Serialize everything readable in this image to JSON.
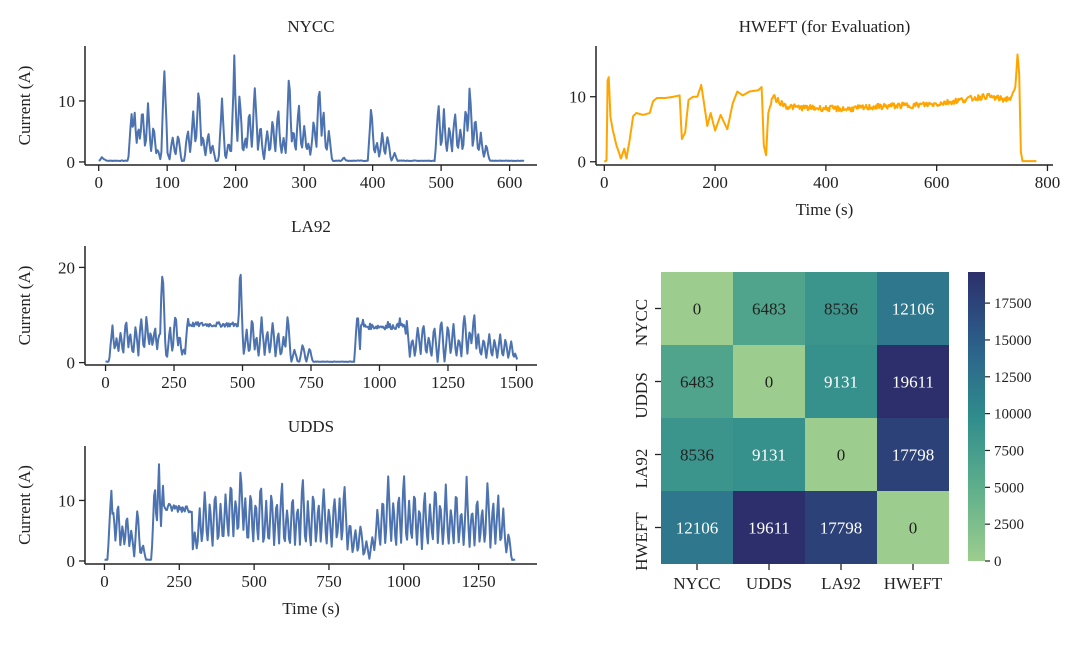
{
  "colors": {
    "series_blue": "#4c72b0",
    "series_orange": "#ffa500",
    "axis": "#222222",
    "heat_low": "#9dcd8e",
    "heat_high": "#2c2f6b"
  },
  "chart_data": [
    {
      "type": "line",
      "title": "NYCC",
      "ylabel": "Current (A)",
      "xlabel": "",
      "xlim": [
        -20,
        640
      ],
      "ylim": [
        -0.5,
        19
      ],
      "xticks": [
        0,
        100,
        200,
        300,
        400,
        500,
        600
      ],
      "yticks": [
        0,
        10
      ],
      "grid": false,
      "color": "#4c72b0",
      "x_max": 620,
      "peaks": [
        [
          5,
          0.9
        ],
        [
          9,
          0.4
        ],
        [
          48,
          8.7
        ],
        [
          52,
          9.0
        ],
        [
          58,
          6.5
        ],
        [
          64,
          10.2
        ],
        [
          72,
          10.3
        ],
        [
          80,
          6.5
        ],
        [
          86,
          2.5
        ],
        [
          96,
          16.8
        ],
        [
          100,
          1.5
        ],
        [
          108,
          4.5
        ],
        [
          116,
          4.8
        ],
        [
          130,
          6.0
        ],
        [
          138,
          9.5
        ],
        [
          146,
          14.5
        ],
        [
          152,
          4.5
        ],
        [
          160,
          5.5
        ],
        [
          166,
          3.0
        ],
        [
          180,
          10.6
        ],
        [
          190,
          3.5
        ],
        [
          198,
          18.0
        ],
        [
          206,
          12.5
        ],
        [
          214,
          4.5
        ],
        [
          220,
          9.5
        ],
        [
          228,
          14.2
        ],
        [
          236,
          6.8
        ],
        [
          246,
          5.5
        ],
        [
          254,
          7.5
        ],
        [
          262,
          9.3
        ],
        [
          270,
          4.2
        ],
        [
          278,
          15.4
        ],
        [
          284,
          6.0
        ],
        [
          292,
          10.5
        ],
        [
          300,
          6.4
        ],
        [
          306,
          3.5
        ],
        [
          314,
          8.0
        ],
        [
          322,
          14.4
        ],
        [
          328,
          9.5
        ],
        [
          336,
          5.5
        ],
        [
          358,
          0.8
        ],
        [
          398,
          10.2
        ],
        [
          406,
          3.5
        ],
        [
          414,
          5.0
        ],
        [
          422,
          4.8
        ],
        [
          432,
          1.5
        ],
        [
          496,
          10.5
        ],
        [
          504,
          9.0
        ],
        [
          512,
          6.2
        ],
        [
          520,
          9.4
        ],
        [
          528,
          6.0
        ],
        [
          536,
          10.7
        ],
        [
          542,
          13.4
        ],
        [
          550,
          8.0
        ],
        [
          558,
          5.0
        ],
        [
          566,
          3.0
        ]
      ]
    },
    {
      "type": "line",
      "title": "LA92",
      "ylabel": "Current (A)",
      "xlabel": "",
      "xlim": [
        -75,
        1575
      ],
      "ylim": [
        -0.5,
        24.5
      ],
      "xticks": [
        0,
        250,
        500,
        750,
        1000,
        1250,
        1500
      ],
      "yticks": [
        0,
        20
      ],
      "grid": false,
      "color": "#4c72b0",
      "x_max": 1500,
      "peaks": [
        [
          25,
          8.3
        ],
        [
          40,
          5.5
        ],
        [
          55,
          7.0
        ],
        [
          75,
          11.0
        ],
        [
          90,
          7.2
        ],
        [
          110,
          8.5
        ],
        [
          130,
          10.7
        ],
        [
          150,
          11.0
        ],
        [
          165,
          7.5
        ],
        [
          180,
          9.0
        ],
        [
          195,
          6.5
        ],
        [
          208,
          23.3
        ],
        [
          215,
          3.5
        ],
        [
          235,
          8.0
        ],
        [
          255,
          11.8
        ],
        [
          270,
          6.5
        ],
        [
          285,
          3.5
        ],
        [
          300,
          10.3
        ],
        [
          320,
          8.0
        ],
        [
          345,
          6.5
        ],
        [
          370,
          7.8
        ],
        [
          400,
          8.2
        ],
        [
          430,
          8.0
        ],
        [
          460,
          8.5
        ],
        [
          485,
          8.2
        ],
        [
          492,
          21.5
        ],
        [
          500,
          3.0
        ],
        [
          515,
          7.5
        ],
        [
          535,
          10.6
        ],
        [
          550,
          6.0
        ],
        [
          570,
          10.2
        ],
        [
          590,
          8.0
        ],
        [
          610,
          10.0
        ],
        [
          630,
          7.0
        ],
        [
          650,
          6.0
        ],
        [
          665,
          10.6
        ],
        [
          690,
          3.0
        ],
        [
          720,
          4.5
        ],
        [
          745,
          3.5
        ],
        [
          920,
          12.8
        ],
        [
          940,
          9.5
        ],
        [
          960,
          8.5
        ],
        [
          985,
          8.0
        ],
        [
          1010,
          7.2
        ],
        [
          1030,
          10.5
        ],
        [
          1055,
          7.5
        ],
        [
          1075,
          10.5
        ],
        [
          1100,
          9.5
        ],
        [
          1120,
          6.0
        ],
        [
          1140,
          8.5
        ],
        [
          1160,
          10.0
        ],
        [
          1180,
          6.0
        ],
        [
          1200,
          8.5
        ],
        [
          1225,
          10.5
        ],
        [
          1250,
          9.0
        ],
        [
          1270,
          8.5
        ],
        [
          1290,
          6.0
        ],
        [
          1310,
          11.5
        ],
        [
          1330,
          8.0
        ],
        [
          1345,
          12.1
        ],
        [
          1360,
          6.5
        ],
        [
          1380,
          5.5
        ],
        [
          1400,
          6.5
        ],
        [
          1420,
          5.5
        ],
        [
          1440,
          6.5
        ],
        [
          1460,
          5.5
        ],
        [
          1480,
          5.0
        ],
        [
          1495,
          2.0
        ]
      ],
      "plateaus": [
        [
          305,
          480,
          7.5,
          8.5
        ],
        [
          935,
          1090,
          7.0,
          8.2
        ]
      ]
    },
    {
      "type": "line",
      "title": "UDDS",
      "ylabel": "Current (A)",
      "xlabel": "Time (s)",
      "xlim": [
        -65,
        1445
      ],
      "ylim": [
        -0.5,
        19
      ],
      "xticks": [
        0,
        250,
        500,
        750,
        1000,
        1250
      ],
      "yticks": [
        0,
        10
      ],
      "grid": false,
      "color": "#4c72b0",
      "x_max": 1370,
      "peaks": [
        [
          22,
          13.3
        ],
        [
          30,
          9.0
        ],
        [
          45,
          10.5
        ],
        [
          60,
          6.5
        ],
        [
          75,
          8.7
        ],
        [
          90,
          6.0
        ],
        [
          110,
          9.5
        ],
        [
          128,
          3.0
        ],
        [
          168,
          15.0
        ],
        [
          182,
          16.5
        ],
        [
          195,
          14.5
        ],
        [
          210,
          9.5
        ],
        [
          235,
          9.0
        ],
        [
          260,
          8.5
        ],
        [
          285,
          9.0
        ],
        [
          302,
          5.5
        ],
        [
          318,
          9.0
        ],
        [
          335,
          13.0
        ],
        [
          352,
          10.5
        ],
        [
          370,
          13.5
        ],
        [
          388,
          11.0
        ],
        [
          405,
          13.0
        ],
        [
          422,
          15.2
        ],
        [
          438,
          12.0
        ],
        [
          455,
          18.2
        ],
        [
          470,
          11.5
        ],
        [
          488,
          13.5
        ],
        [
          505,
          12.0
        ],
        [
          522,
          15.0
        ],
        [
          540,
          10.5
        ],
        [
          558,
          13.0
        ],
        [
          575,
          11.0
        ],
        [
          592,
          14.5
        ],
        [
          610,
          9.5
        ],
        [
          628,
          12.5
        ],
        [
          645,
          11.0
        ],
        [
          662,
          15.3
        ],
        [
          680,
          10.5
        ],
        [
          698,
          13.0
        ],
        [
          715,
          11.0
        ],
        [
          732,
          14.5
        ],
        [
          750,
          10.5
        ],
        [
          768,
          13.0
        ],
        [
          785,
          11.0
        ],
        [
          802,
          14.5
        ],
        [
          820,
          7.5
        ],
        [
          838,
          5.5
        ],
        [
          856,
          7.0
        ],
        [
          875,
          3.5
        ],
        [
          895,
          4.5
        ],
        [
          912,
          10.0
        ],
        [
          930,
          12.5
        ],
        [
          948,
          15.0
        ],
        [
          965,
          10.5
        ],
        [
          983,
          12.0
        ],
        [
          1000,
          15.5
        ],
        [
          1018,
          11.0
        ],
        [
          1035,
          13.5
        ],
        [
          1052,
          10.5
        ],
        [
          1070,
          13.0
        ],
        [
          1088,
          10.5
        ],
        [
          1105,
          14.5
        ],
        [
          1122,
          11.5
        ],
        [
          1140,
          13.0
        ],
        [
          1158,
          10.5
        ],
        [
          1175,
          12.5
        ],
        [
          1192,
          10.0
        ],
        [
          1210,
          14.5
        ],
        [
          1228,
          10.5
        ],
        [
          1245,
          12.0
        ],
        [
          1262,
          10.0
        ],
        [
          1280,
          15.0
        ],
        [
          1298,
          11.0
        ],
        [
          1315,
          12.5
        ],
        [
          1332,
          9.5
        ],
        [
          1350,
          5.0
        ]
      ],
      "plateaus": [
        [
          200,
          290,
          8.0,
          9.5
        ]
      ]
    },
    {
      "type": "line",
      "title": "HWEFT (for Evaluation)",
      "ylabel": "",
      "xlabel": "Time (s)",
      "xlim": [
        -15,
        810
      ],
      "ylim": [
        -0.5,
        17.8
      ],
      "xticks": [
        0,
        200,
        400,
        600,
        800
      ],
      "yticks": [
        0,
        10
      ],
      "grid": false,
      "color": "#ffa500",
      "x_max": 780,
      "profile": [
        [
          0,
          0
        ],
        [
          4,
          0.2
        ],
        [
          6,
          12.5
        ],
        [
          8,
          13.0
        ],
        [
          11,
          7.0
        ],
        [
          15,
          5.0
        ],
        [
          22,
          2.5
        ],
        [
          30,
          0.5
        ],
        [
          36,
          2.0
        ],
        [
          40,
          0.5
        ],
        [
          46,
          3.5
        ],
        [
          52,
          7.0
        ],
        [
          58,
          7.5
        ],
        [
          70,
          7.2
        ],
        [
          82,
          7.5
        ],
        [
          88,
          9.3
        ],
        [
          95,
          9.8
        ],
        [
          110,
          9.8
        ],
        [
          125,
          10.0
        ],
        [
          136,
          10.2
        ],
        [
          140,
          3.5
        ],
        [
          146,
          4.5
        ],
        [
          152,
          9.5
        ],
        [
          160,
          10.0
        ],
        [
          168,
          10.0
        ],
        [
          175,
          11.8
        ],
        [
          180,
          9.0
        ],
        [
          186,
          5.5
        ],
        [
          192,
          7.5
        ],
        [
          200,
          4.8
        ],
        [
          210,
          7.2
        ],
        [
          222,
          5.0
        ],
        [
          232,
          9.0
        ],
        [
          240,
          10.8
        ],
        [
          250,
          10.2
        ],
        [
          262,
          10.8
        ],
        [
          278,
          11.0
        ],
        [
          284,
          11.5
        ],
        [
          288,
          2.5
        ],
        [
          292,
          1.0
        ],
        [
          296,
          7.5
        ],
        [
          304,
          10.0
        ],
        [
          312,
          9.5
        ],
        [
          320,
          9.0
        ],
        [
          330,
          8.5
        ],
        [
          360,
          8.3
        ],
        [
          400,
          8.2
        ],
        [
          440,
          8.1
        ],
        [
          480,
          8.4
        ],
        [
          520,
          8.6
        ],
        [
          560,
          8.7
        ],
        [
          600,
          8.9
        ],
        [
          630,
          9.3
        ],
        [
          660,
          9.7
        ],
        [
          690,
          10.1
        ],
        [
          720,
          9.6
        ],
        [
          736,
          9.8
        ],
        [
          742,
          11.5
        ],
        [
          746,
          16.5
        ],
        [
          749,
          13.5
        ],
        [
          752,
          1.5
        ],
        [
          755,
          0.1
        ],
        [
          780,
          0.1
        ]
      ]
    },
    {
      "type": "heatmap",
      "title": "",
      "rows": [
        "NYCC",
        "UDDS",
        "LA92",
        "HWEFT"
      ],
      "cols": [
        "NYCC",
        "UDDS",
        "LA92",
        "HWEFT"
      ],
      "values": [
        [
          0,
          6483,
          8536,
          12106
        ],
        [
          6483,
          0,
          9131,
          19611
        ],
        [
          8536,
          9131,
          0,
          17798
        ],
        [
          12106,
          19611,
          17798,
          0
        ]
      ],
      "vmin": 0,
      "vmax": 19611,
      "colorbar_ticks": [
        0,
        2500,
        5000,
        7500,
        10000,
        12500,
        15000,
        17500
      ],
      "colormap": "crest"
    }
  ]
}
